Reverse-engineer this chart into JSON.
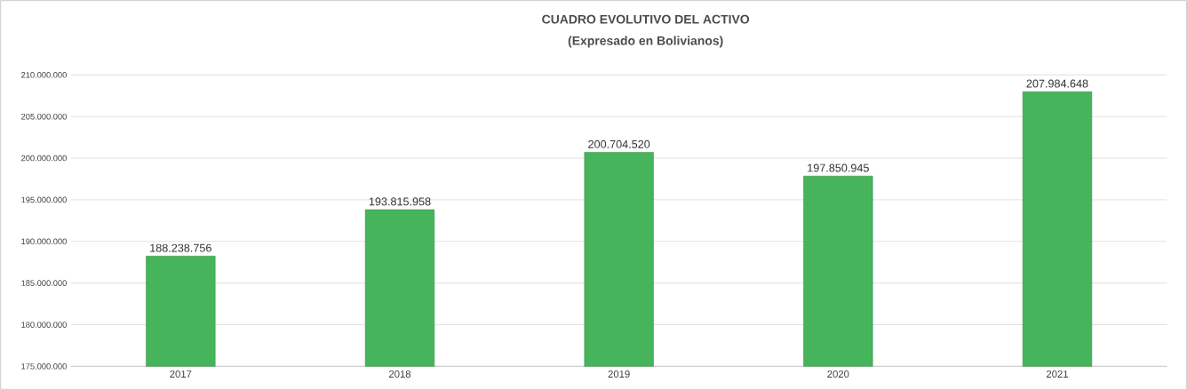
{
  "chart_data": {
    "type": "bar",
    "title": "CUADRO EVOLUTIVO DEL ACTIVO",
    "subtitle": "(Expresado en Bolivianos)",
    "categories": [
      "2017",
      "2018",
      "2019",
      "2020",
      "2021"
    ],
    "values": [
      188238756,
      193815958,
      200704520,
      197850945,
      207984648
    ],
    "value_labels": [
      "188.238.756",
      "193.815.958",
      "200.704.520",
      "197.850.945",
      "207.984.648"
    ],
    "color": "#46b45a",
    "ylim": [
      175000000,
      210000000
    ],
    "yticks": [
      {
        "value": 175000000,
        "label": "175.000.000"
      },
      {
        "value": 180000000,
        "label": "180.000.000"
      },
      {
        "value": 185000000,
        "label": "185.000.000"
      },
      {
        "value": 190000000,
        "label": "190.000.000"
      },
      {
        "value": 195000000,
        "label": "195.000.000"
      },
      {
        "value": 200000000,
        "label": "200.000.000"
      },
      {
        "value": 205000000,
        "label": "205.000.000"
      },
      {
        "value": 210000000,
        "label": "210.000.000"
      }
    ],
    "grid": "y"
  }
}
